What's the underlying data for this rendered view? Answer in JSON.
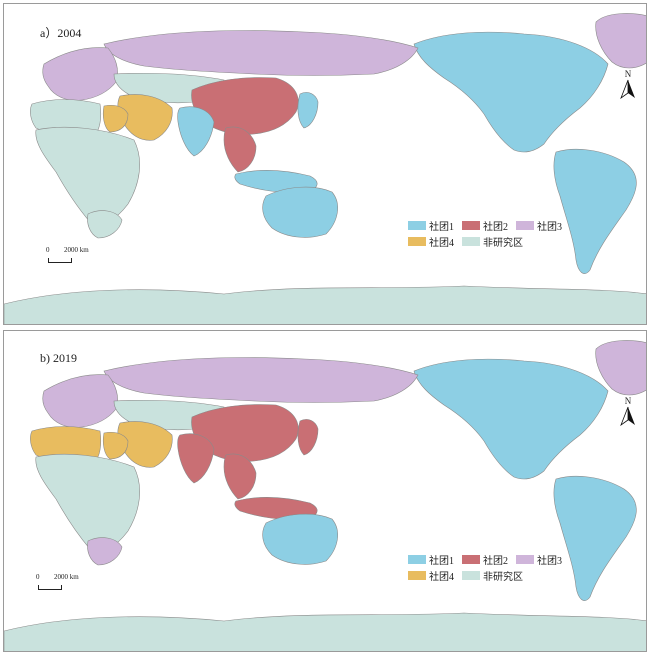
{
  "colors": {
    "ocean": "#ffffff",
    "c1": "#8dcfe4",
    "c2": "#c96f74",
    "c3": "#cfb5da",
    "c4": "#e8bc5f",
    "none": "#c9e2dd",
    "border": "#8a8a8a"
  },
  "legend": {
    "c1": "社团1",
    "c2": "社团2",
    "c3": "社团3",
    "c4": "社团4",
    "none": "非研究区"
  },
  "scalebar": {
    "zero": "0",
    "distance": "2000 km"
  },
  "north_arrow": "N",
  "panels": [
    {
      "label": "a）2004",
      "regions": {
        "americas": "c1",
        "greenland": "c3",
        "south_america": "c1",
        "europe": "c3",
        "russia": "c3",
        "central_asia": "none",
        "china": "c2",
        "korea_japan": "c1",
        "india": "c1",
        "southeast_asia": "c2",
        "indonesia": "c1",
        "australia": "c1",
        "middle_east": "c4",
        "egypt": "c4",
        "north_africa": "none",
        "africa": "none",
        "south_africa": "none",
        "antarctica": "none"
      }
    },
    {
      "label": "b) 2019",
      "regions": {
        "americas": "c1",
        "greenland": "c3",
        "south_america": "c1",
        "europe": "c3",
        "russia": "c3",
        "central_asia": "none",
        "china": "c2",
        "korea_japan": "c2",
        "india": "c2",
        "southeast_asia": "c2",
        "indonesia": "c2",
        "australia": "c1",
        "middle_east": "c4",
        "egypt": "c4",
        "north_africa": "c4",
        "africa": "none",
        "south_africa": "c3",
        "antarctica": "none"
      }
    }
  ]
}
